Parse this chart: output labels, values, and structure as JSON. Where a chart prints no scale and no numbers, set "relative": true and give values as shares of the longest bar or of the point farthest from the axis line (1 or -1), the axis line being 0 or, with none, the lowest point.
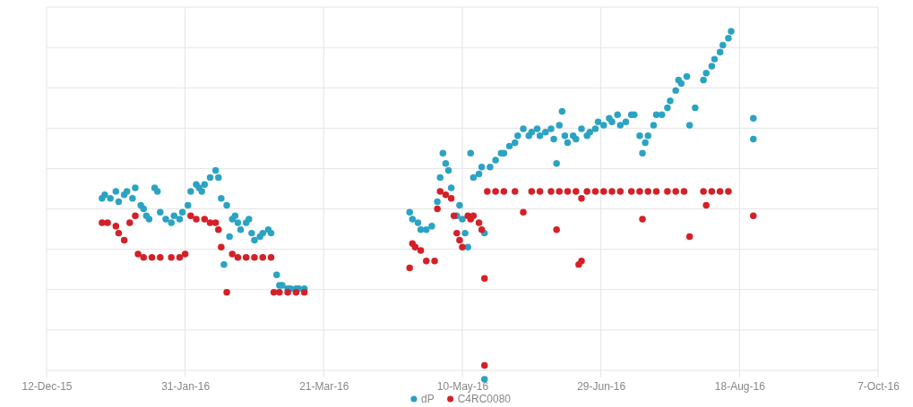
{
  "chart_data": {
    "type": "scatter",
    "relative": true,
    "grid": true,
    "legend": "bottom",
    "marker": "circle",
    "xlim": [
      "2015-12-12",
      "2016-10-07"
    ],
    "xticks": [
      {
        "value": "2015-12-12",
        "label": "12-Dec-15"
      },
      {
        "value": "2016-01-31",
        "label": "31-Jan-16"
      },
      {
        "value": "2016-03-21",
        "label": "21-Mar-16"
      },
      {
        "value": "2016-05-10",
        "label": "10-May-16"
      },
      {
        "value": "2016-06-29",
        "label": "29-Jun-16"
      },
      {
        "value": "2016-08-18",
        "label": "18-Aug-16"
      },
      {
        "value": "2016-10-07",
        "label": "7-Oct-16"
      }
    ],
    "series": [
      {
        "name": "dP",
        "color": "#2ba3c3",
        "x": [
          "2016-01-01",
          "2016-01-02",
          "2016-01-04",
          "2016-01-06",
          "2016-01-07",
          "2016-01-09",
          "2016-01-10",
          "2016-01-12",
          "2016-01-13",
          "2016-01-15",
          "2016-01-16",
          "2016-01-17",
          "2016-01-18",
          "2016-01-20",
          "2016-01-21",
          "2016-01-22",
          "2016-01-24",
          "2016-01-26",
          "2016-01-27",
          "2016-01-29",
          "2016-01-30",
          "2016-02-01",
          "2016-02-02",
          "2016-02-04",
          "2016-02-05",
          "2016-02-06",
          "2016-02-07",
          "2016-02-09",
          "2016-02-11",
          "2016-02-12",
          "2016-02-13",
          "2016-02-15",
          "2016-02-16",
          "2016-02-14",
          "2016-02-17",
          "2016-02-18",
          "2016-02-19",
          "2016-02-20",
          "2016-02-22",
          "2016-02-23",
          "2016-02-24",
          "2016-02-25",
          "2016-02-27",
          "2016-02-28",
          "2016-03-01",
          "2016-03-02",
          "2016-03-04",
          "2016-03-05",
          "2016-03-06",
          "2016-03-08",
          "2016-03-09",
          "2016-03-11",
          "2016-03-12",
          "2016-03-14",
          "2016-04-21",
          "2016-04-22",
          "2016-04-24",
          "2016-04-25",
          "2016-04-27",
          "2016-04-29",
          "2016-05-01",
          "2016-05-02",
          "2016-05-03",
          "2016-05-04",
          "2016-05-05",
          "2016-05-06",
          "2016-05-08",
          "2016-05-09",
          "2016-05-10",
          "2016-05-11",
          "2016-05-12",
          "2016-05-13",
          "2016-05-14",
          "2016-05-16",
          "2016-05-17",
          "2016-05-18",
          "2016-05-18",
          "2016-05-20",
          "2016-05-22",
          "2016-05-24",
          "2016-05-25",
          "2016-05-27",
          "2016-05-29",
          "2016-05-30",
          "2016-06-01",
          "2016-06-03",
          "2016-06-04",
          "2016-06-06",
          "2016-06-07",
          "2016-06-09",
          "2016-06-11",
          "2016-06-12",
          "2016-06-14",
          "2016-06-15",
          "2016-06-13",
          "2016-06-16",
          "2016-06-17",
          "2016-06-19",
          "2016-06-20",
          "2016-06-22",
          "2016-06-24",
          "2016-06-25",
          "2016-06-27",
          "2016-06-28",
          "2016-06-30",
          "2016-07-02",
          "2016-07-03",
          "2016-07-05",
          "2016-07-06",
          "2016-07-08",
          "2016-07-10",
          "2016-07-11",
          "2016-07-13",
          "2016-07-14",
          "2016-07-15",
          "2016-07-16",
          "2016-07-18",
          "2016-07-19",
          "2016-07-21",
          "2016-07-23",
          "2016-07-24",
          "2016-07-26",
          "2016-07-27",
          "2016-07-28",
          "2016-07-30",
          "2016-07-31",
          "2016-08-02",
          "2016-08-05",
          "2016-08-06",
          "2016-08-08",
          "2016-08-09",
          "2016-08-11",
          "2016-08-12",
          "2016-08-14",
          "2016-08-15",
          "2016-08-23",
          "2016-08-23"
        ],
        "values": [
          0.52,
          0.53,
          0.52,
          0.54,
          0.51,
          0.53,
          0.54,
          0.52,
          0.55,
          0.5,
          0.49,
          0.47,
          0.46,
          0.55,
          0.54,
          0.48,
          0.46,
          0.45,
          0.47,
          0.46,
          0.48,
          0.5,
          0.54,
          0.56,
          0.55,
          0.54,
          0.56,
          0.58,
          0.6,
          0.58,
          0.52,
          0.5,
          0.41,
          0.33,
          0.46,
          0.47,
          0.45,
          0.43,
          0.45,
          0.46,
          0.42,
          0.4,
          0.41,
          0.42,
          0.43,
          0.42,
          0.3,
          0.27,
          0.27,
          0.26,
          0.26,
          0.26,
          0.26,
          0.26,
          0.48,
          0.46,
          0.45,
          0.43,
          0.43,
          0.44,
          0.51,
          0.58,
          0.65,
          0.62,
          0.6,
          0.55,
          0.47,
          0.5,
          0.46,
          0.42,
          0.38,
          0.65,
          0.58,
          0.59,
          0.61,
          0.42,
          0,
          0.61,
          0.63,
          0.65,
          0.65,
          0.67,
          0.68,
          0.7,
          0.72,
          0.7,
          0.71,
          0.72,
          0.7,
          0.71,
          0.72,
          0.69,
          0.73,
          0.77,
          0.62,
          0.7,
          0.68,
          0.7,
          0.69,
          0.72,
          0.7,
          0.71,
          0.72,
          0.74,
          0.73,
          0.75,
          0.74,
          0.76,
          0.73,
          0.74,
          0.76,
          0.76,
          0.7,
          0.65,
          0.68,
          0.7,
          0.73,
          0.76,
          0.76,
          0.78,
          0.8,
          0.83,
          0.86,
          0.85,
          0.87,
          0.73,
          0.78,
          0.86,
          0.88,
          0.9,
          0.92,
          0.94,
          0.96,
          0.98,
          1.0,
          0.75,
          0.69
        ]
      },
      {
        "name": "C4RC0080",
        "color": "#d42027",
        "x": [
          "2016-01-01",
          "2016-01-03",
          "2016-01-06",
          "2016-01-07",
          "2016-01-09",
          "2016-01-11",
          "2016-01-13",
          "2016-01-14",
          "2016-01-16",
          "2016-01-19",
          "2016-01-22",
          "2016-01-26",
          "2016-01-29",
          "2016-01-31",
          "2016-02-02",
          "2016-02-04",
          "2016-02-07",
          "2016-02-09",
          "2016-02-11",
          "2016-02-12",
          "2016-02-13",
          "2016-02-15",
          "2016-02-17",
          "2016-02-19",
          "2016-02-22",
          "2016-02-25",
          "2016-02-28",
          "2016-03-02",
          "2016-03-03",
          "2016-03-05",
          "2016-03-08",
          "2016-03-11",
          "2016-03-14",
          "2016-04-21",
          "2016-04-22",
          "2016-04-23",
          "2016-04-25",
          "2016-04-27",
          "2016-04-30",
          "2016-05-01",
          "2016-05-02",
          "2016-05-04",
          "2016-05-06",
          "2016-05-07",
          "2016-05-08",
          "2016-05-09",
          "2016-05-10",
          "2016-05-12",
          "2016-05-13",
          "2016-05-14",
          "2016-05-16",
          "2016-05-17",
          "2016-05-18",
          "2016-05-18",
          "2016-05-19",
          "2016-05-22",
          "2016-05-25",
          "2016-05-29",
          "2016-06-01",
          "2016-06-04",
          "2016-06-07",
          "2016-06-11",
          "2016-06-14",
          "2016-06-17",
          "2016-06-20",
          "2016-06-24",
          "2016-06-27",
          "2016-06-30",
          "2016-07-03",
          "2016-07-06",
          "2016-07-10",
          "2016-07-13",
          "2016-07-16",
          "2016-07-19",
          "2016-07-23",
          "2016-07-26",
          "2016-07-29",
          "2016-08-05",
          "2016-08-08",
          "2016-08-11",
          "2016-08-14",
          "2016-08-06",
          "2016-06-13",
          "2016-06-21",
          "2016-06-22",
          "2016-07-14",
          "2016-07-31",
          "2016-08-23",
          "2016-06-22"
        ],
        "values": [
          0.45,
          0.45,
          0.44,
          0.42,
          0.4,
          0.45,
          0.47,
          0.36,
          0.35,
          0.35,
          0.35,
          0.35,
          0.35,
          0.36,
          0.47,
          0.46,
          0.46,
          0.45,
          0.45,
          0.43,
          0.38,
          0.25,
          0.36,
          0.35,
          0.35,
          0.35,
          0.35,
          0.35,
          0.25,
          0.25,
          0.25,
          0.25,
          0.25,
          0.32,
          0.39,
          0.38,
          0.37,
          0.34,
          0.34,
          0.49,
          0.54,
          0.53,
          0.52,
          0.47,
          0.42,
          0.4,
          0.38,
          0.47,
          0.46,
          0.47,
          0.45,
          0.43,
          0.29,
          0.04,
          0.54,
          0.54,
          0.54,
          0.54,
          0.48,
          0.54,
          0.54,
          0.54,
          0.54,
          0.54,
          0.54,
          0.54,
          0.54,
          0.54,
          0.54,
          0.54,
          0.54,
          0.54,
          0.54,
          0.54,
          0.54,
          0.54,
          0.54,
          0.54,
          0.54,
          0.54,
          0.54,
          0.5,
          0.43,
          0.33,
          0.34,
          0.46,
          0.41,
          0.47,
          0.52
        ]
      }
    ]
  }
}
